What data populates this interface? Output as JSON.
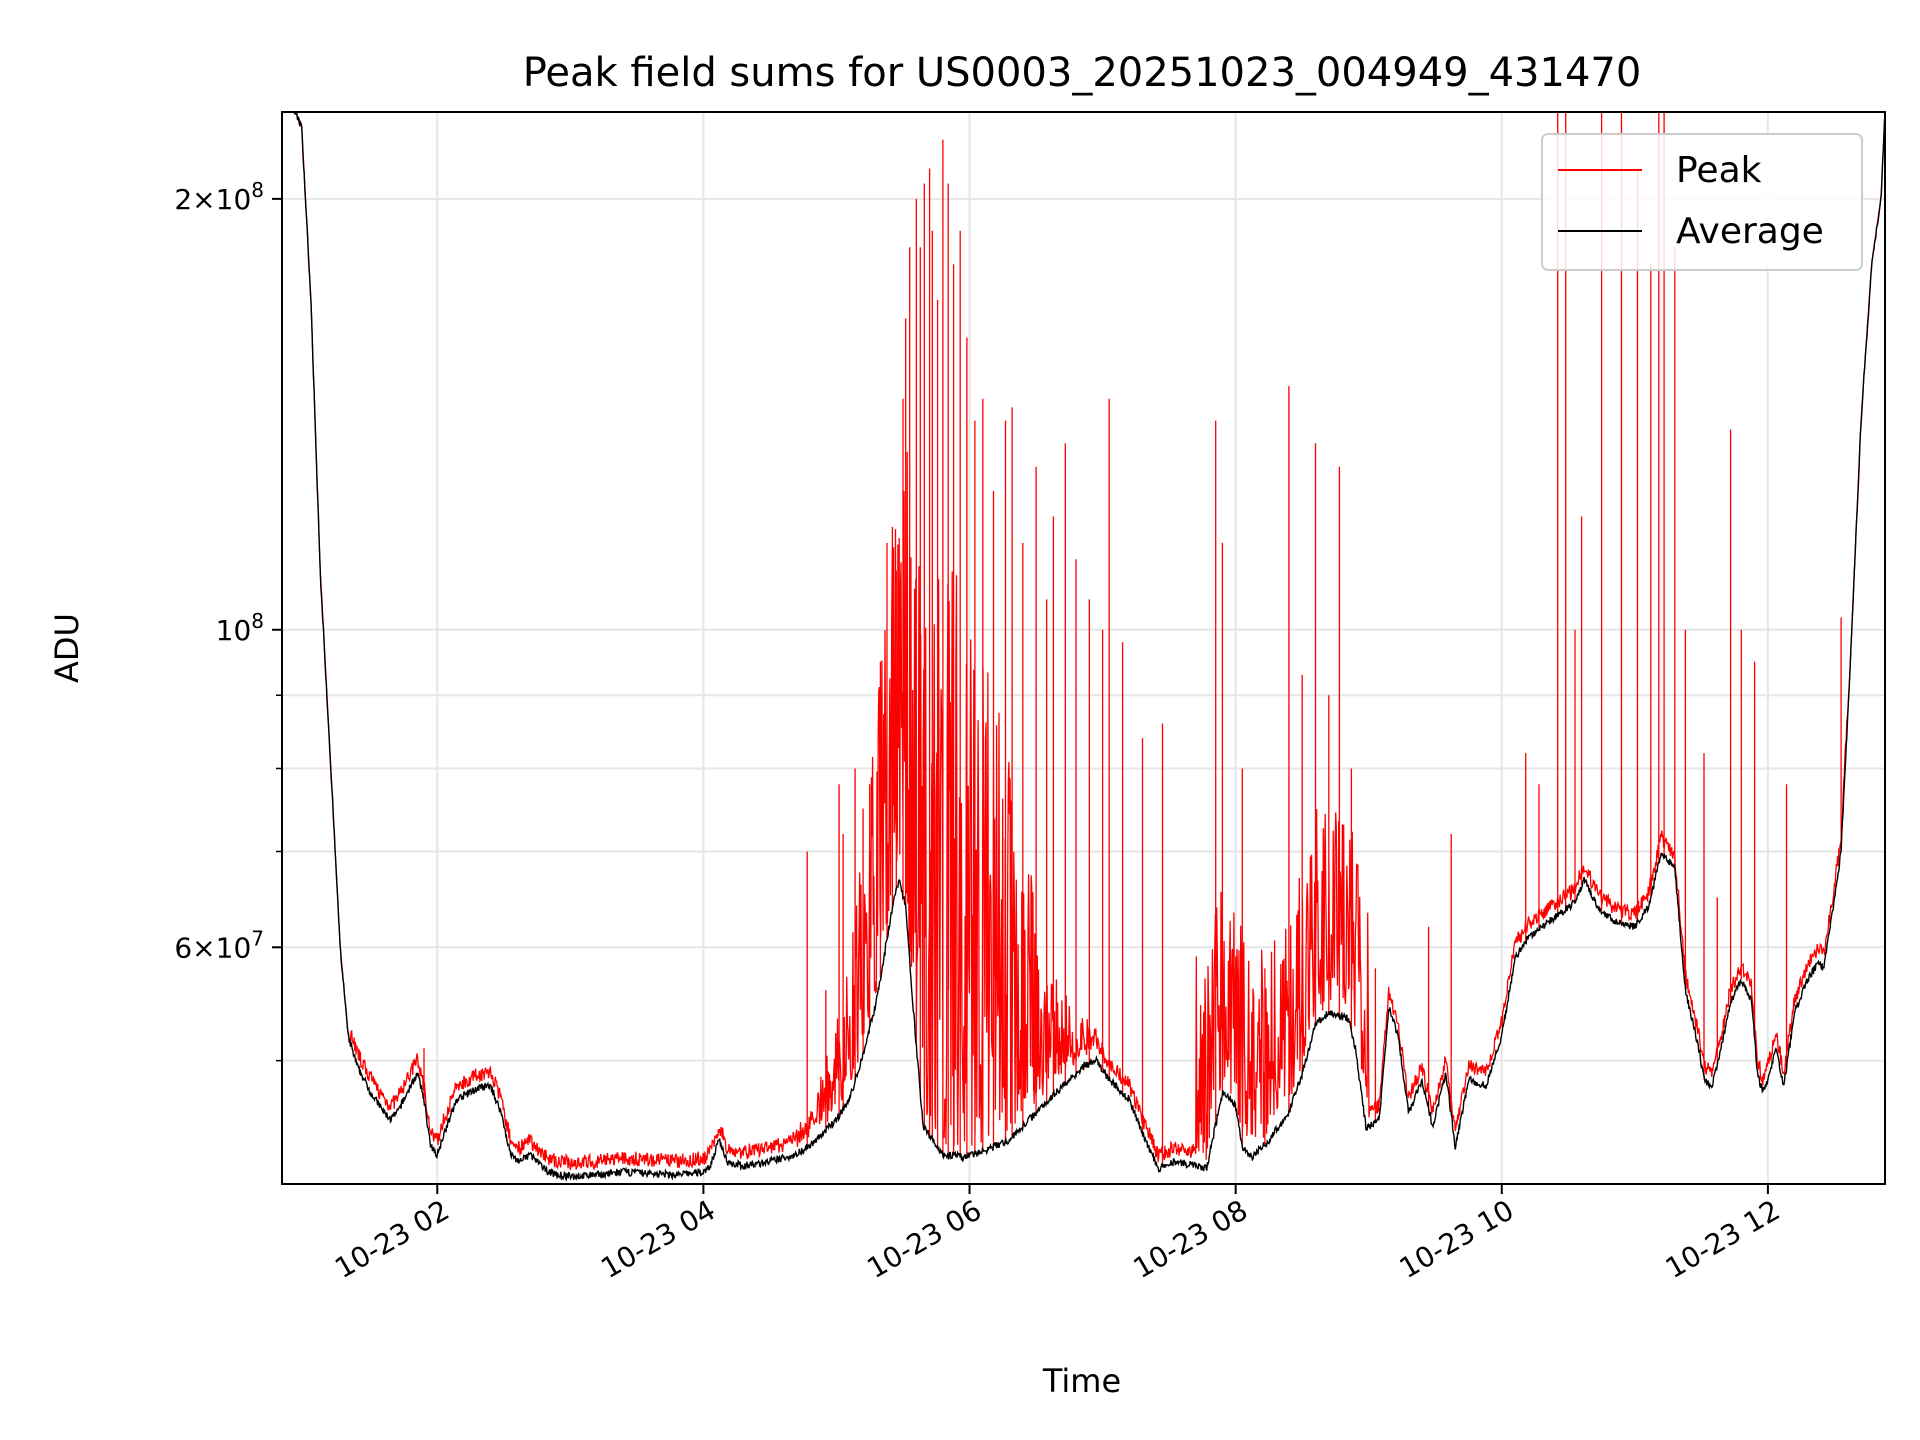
{
  "chart_data": {
    "type": "line",
    "title": "Peak field sums for US0003_20251023_004949_431470",
    "xlabel": "Time",
    "ylabel": "ADU",
    "yscale": "log",
    "xlim": [
      0.833,
      12.88
    ],
    "ylim": [
      41000000,
      230000000
    ],
    "grid": true,
    "legend_position": "top-right",
    "x_ticks": [
      {
        "x": 2,
        "label": "10-23 02"
      },
      {
        "x": 4,
        "label": "10-23 04"
      },
      {
        "x": 6,
        "label": "10-23 06"
      },
      {
        "x": 8,
        "label": "10-23 08"
      },
      {
        "x": 10,
        "label": "10-23 10"
      },
      {
        "x": 12,
        "label": "10-23 12"
      }
    ],
    "y_ticks": [
      {
        "y": 60000000,
        "mantissa": "6",
        "exponent": "7"
      },
      {
        "y": 100000000,
        "mantissa": "",
        "exponent": "8"
      },
      {
        "y": 200000000,
        "mantissa": "2",
        "exponent": "8"
      }
    ],
    "y_minor_ticks": [
      50000000,
      70000000,
      80000000,
      90000000
    ],
    "series": [
      {
        "name": "Peak",
        "color": "#ff0000"
      },
      {
        "name": "Average",
        "color": "#000000"
      }
    ],
    "average_curve": [
      [
        0.83,
        240000000
      ],
      [
        0.98,
        225000000
      ],
      [
        1.05,
        170000000
      ],
      [
        1.12,
        110000000
      ],
      [
        1.2,
        80000000
      ],
      [
        1.27,
        60000000
      ],
      [
        1.33,
        52000000
      ],
      [
        1.4,
        49500000
      ],
      [
        1.5,
        47500000
      ],
      [
        1.6,
        46000000
      ],
      [
        1.65,
        45500000
      ],
      [
        1.7,
        46000000
      ],
      [
        1.8,
        48000000
      ],
      [
        1.85,
        49000000
      ],
      [
        1.9,
        47000000
      ],
      [
        1.95,
        43500000
      ],
      [
        2.0,
        43000000
      ],
      [
        2.05,
        44500000
      ],
      [
        2.15,
        47000000
      ],
      [
        2.3,
        47800000
      ],
      [
        2.4,
        48000000
      ],
      [
        2.48,
        46000000
      ],
      [
        2.55,
        43000000
      ],
      [
        2.62,
        42500000
      ],
      [
        2.7,
        43000000
      ],
      [
        2.8,
        42000000
      ],
      [
        2.9,
        41600000
      ],
      [
        3.0,
        41500000
      ],
      [
        3.2,
        41600000
      ],
      [
        3.4,
        41800000
      ],
      [
        3.6,
        41700000
      ],
      [
        3.8,
        41600000
      ],
      [
        4.0,
        41800000
      ],
      [
        4.05,
        42200000
      ],
      [
        4.12,
        44000000
      ],
      [
        4.18,
        42500000
      ],
      [
        4.3,
        42200000
      ],
      [
        4.5,
        42500000
      ],
      [
        4.7,
        43000000
      ],
      [
        4.85,
        44000000
      ],
      [
        5.0,
        45500000
      ],
      [
        5.1,
        47000000
      ],
      [
        5.2,
        50500000
      ],
      [
        5.3,
        55000000
      ],
      [
        5.42,
        64000000
      ],
      [
        5.47,
        67000000
      ],
      [
        5.52,
        64000000
      ],
      [
        5.58,
        54000000
      ],
      [
        5.65,
        45000000
      ],
      [
        5.8,
        43000000
      ],
      [
        5.95,
        42800000
      ],
      [
        6.1,
        43200000
      ],
      [
        6.3,
        44000000
      ],
      [
        6.45,
        45500000
      ],
      [
        6.6,
        47000000
      ],
      [
        6.7,
        48000000
      ],
      [
        6.85,
        49500000
      ],
      [
        6.95,
        50000000
      ],
      [
        7.05,
        48500000
      ],
      [
        7.2,
        47000000
      ],
      [
        7.3,
        44500000
      ],
      [
        7.42,
        42000000
      ],
      [
        7.55,
        42500000
      ],
      [
        7.7,
        42200000
      ],
      [
        7.78,
        42000000
      ],
      [
        7.9,
        47500000
      ],
      [
        8.0,
        46500000
      ],
      [
        8.05,
        43500000
      ],
      [
        8.12,
        42800000
      ],
      [
        8.25,
        44000000
      ],
      [
        8.4,
        46000000
      ],
      [
        8.5,
        49000000
      ],
      [
        8.6,
        53000000
      ],
      [
        8.7,
        54000000
      ],
      [
        8.85,
        53500000
      ],
      [
        8.9,
        51000000
      ],
      [
        8.98,
        44800000
      ],
      [
        9.08,
        45500000
      ],
      [
        9.15,
        54500000
      ],
      [
        9.22,
        52000000
      ],
      [
        9.3,
        46000000
      ],
      [
        9.4,
        48500000
      ],
      [
        9.48,
        45000000
      ],
      [
        9.58,
        49000000
      ],
      [
        9.65,
        43500000
      ],
      [
        9.75,
        48500000
      ],
      [
        9.88,
        48000000
      ],
      [
        10.0,
        52000000
      ],
      [
        10.1,
        59000000
      ],
      [
        10.2,
        61000000
      ],
      [
        10.35,
        62500000
      ],
      [
        10.55,
        64500000
      ],
      [
        10.62,
        67000000
      ],
      [
        10.72,
        64000000
      ],
      [
        10.85,
        62500000
      ],
      [
        11.0,
        62000000
      ],
      [
        11.1,
        64000000
      ],
      [
        11.2,
        70000000
      ],
      [
        11.3,
        68000000
      ],
      [
        11.38,
        56000000
      ],
      [
        11.48,
        51000000
      ],
      [
        11.52,
        48500000
      ],
      [
        11.58,
        48000000
      ],
      [
        11.65,
        51000000
      ],
      [
        11.72,
        55000000
      ],
      [
        11.8,
        57000000
      ],
      [
        11.88,
        55000000
      ],
      [
        11.92,
        49000000
      ],
      [
        11.96,
        47500000
      ],
      [
        12.0,
        48500000
      ],
      [
        12.06,
        51000000
      ],
      [
        12.12,
        48000000
      ],
      [
        12.2,
        54000000
      ],
      [
        12.3,
        57000000
      ],
      [
        12.38,
        58500000
      ],
      [
        12.42,
        58000000
      ],
      [
        12.48,
        63000000
      ],
      [
        12.55,
        70000000
      ],
      [
        12.62,
        95000000
      ],
      [
        12.7,
        140000000
      ],
      [
        12.78,
        180000000
      ],
      [
        12.85,
        200000000
      ],
      [
        12.88,
        230000000
      ]
    ],
    "peak_spikes": [
      [
        1.9,
        51000000
      ],
      [
        4.78,
        70000000
      ],
      [
        4.92,
        56000000
      ],
      [
        5.02,
        78000000
      ],
      [
        5.05,
        72000000
      ],
      [
        5.14,
        80000000
      ],
      [
        5.2,
        75000000
      ],
      [
        5.25,
        78000000
      ],
      [
        5.33,
        95000000
      ],
      [
        5.38,
        115000000
      ],
      [
        5.42,
        118000000
      ],
      [
        5.45,
        110000000
      ],
      [
        5.5,
        145000000
      ],
      [
        5.52,
        165000000
      ],
      [
        5.55,
        185000000
      ],
      [
        5.6,
        200000000
      ],
      [
        5.63,
        185000000
      ],
      [
        5.66,
        205000000
      ],
      [
        5.7,
        210000000
      ],
      [
        5.72,
        190000000
      ],
      [
        5.76,
        170000000
      ],
      [
        5.8,
        220000000
      ],
      [
        5.84,
        205000000
      ],
      [
        5.88,
        180000000
      ],
      [
        5.93,
        190000000
      ],
      [
        5.98,
        160000000
      ],
      [
        6.04,
        140000000
      ],
      [
        6.1,
        145000000
      ],
      [
        6.18,
        125000000
      ],
      [
        6.27,
        140000000
      ],
      [
        6.32,
        143000000
      ],
      [
        6.4,
        115000000
      ],
      [
        6.5,
        130000000
      ],
      [
        6.58,
        105000000
      ],
      [
        6.63,
        120000000
      ],
      [
        6.72,
        135000000
      ],
      [
        6.8,
        112000000
      ],
      [
        6.9,
        105000000
      ],
      [
        7.0,
        100000000
      ],
      [
        7.05,
        145000000
      ],
      [
        7.15,
        98000000
      ],
      [
        7.3,
        84000000
      ],
      [
        7.45,
        86000000
      ],
      [
        7.85,
        140000000
      ],
      [
        7.9,
        115000000
      ],
      [
        8.05,
        80000000
      ],
      [
        8.22,
        58000000
      ],
      [
        8.4,
        148000000
      ],
      [
        8.5,
        93000000
      ],
      [
        8.6,
        135000000
      ],
      [
        8.7,
        90000000
      ],
      [
        8.78,
        130000000
      ],
      [
        8.87,
        80000000
      ],
      [
        9.05,
        58000000
      ],
      [
        9.45,
        62000000
      ],
      [
        9.62,
        72000000
      ],
      [
        10.18,
        82000000
      ],
      [
        10.28,
        78000000
      ],
      [
        10.42,
        240000000
      ],
      [
        10.48,
        240000000
      ],
      [
        10.55,
        100000000
      ],
      [
        10.6,
        120000000
      ],
      [
        10.75,
        240000000
      ],
      [
        10.9,
        240000000
      ],
      [
        11.02,
        210000000
      ],
      [
        11.12,
        180000000
      ],
      [
        11.18,
        240000000
      ],
      [
        11.22,
        240000000
      ],
      [
        11.3,
        185000000
      ],
      [
        11.38,
        100000000
      ],
      [
        11.52,
        82000000
      ],
      [
        11.62,
        65000000
      ],
      [
        11.72,
        138000000
      ],
      [
        11.8,
        100000000
      ],
      [
        11.9,
        95000000
      ],
      [
        12.14,
        78000000
      ],
      [
        12.55,
        102000000
      ]
    ]
  }
}
